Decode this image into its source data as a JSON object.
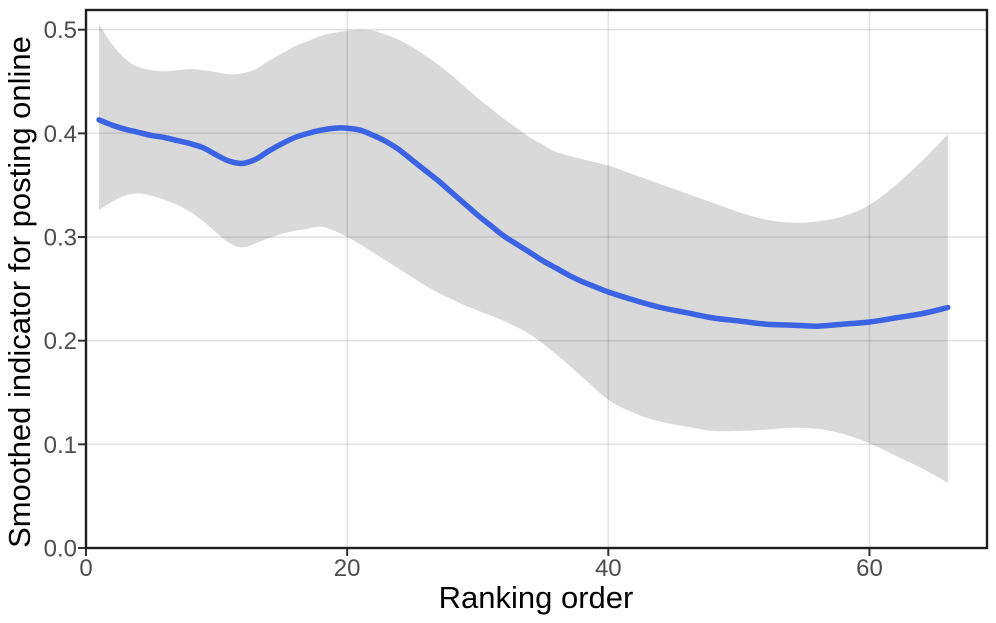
{
  "chart_data": {
    "type": "line",
    "title": "",
    "xlabel": "Ranking order",
    "ylabel": "Smoothed indicator for posting online",
    "legend": "none",
    "grid": "major-only",
    "x_axis": {
      "ticks": [
        0,
        20,
        40,
        60
      ],
      "tick_labels": [
        "0",
        "20",
        "40",
        "60"
      ],
      "range": [
        0,
        69
      ]
    },
    "y_axis": {
      "ticks": [
        0,
        0.1,
        0.2,
        0.3,
        0.4,
        0.5
      ],
      "tick_labels": [
        "0.0",
        "0.1",
        "0.2",
        "0.3",
        "0.4",
        "0.5"
      ],
      "range": [
        0,
        0.519
      ]
    },
    "series": [
      {
        "name": "smoothed-mean",
        "kind": "line",
        "points": [
          [
            1,
            0.413
          ],
          [
            2,
            0.408
          ],
          [
            3,
            0.404
          ],
          [
            4,
            0.401
          ],
          [
            5,
            0.398
          ],
          [
            6,
            0.396
          ],
          [
            7,
            0.393
          ],
          [
            8,
            0.39
          ],
          [
            9,
            0.386
          ],
          [
            10,
            0.379
          ],
          [
            11,
            0.373
          ],
          [
            12,
            0.371
          ],
          [
            13,
            0.375
          ],
          [
            14,
            0.383
          ],
          [
            15,
            0.39
          ],
          [
            16,
            0.396
          ],
          [
            17,
            0.4
          ],
          [
            18,
            0.403
          ],
          [
            19,
            0.405
          ],
          [
            20,
            0.405
          ],
          [
            21,
            0.403
          ],
          [
            22,
            0.398
          ],
          [
            23,
            0.392
          ],
          [
            24,
            0.384
          ],
          [
            25,
            0.374
          ],
          [
            26,
            0.364
          ],
          [
            27,
            0.354
          ],
          [
            28,
            0.343
          ],
          [
            29,
            0.332
          ],
          [
            30,
            0.321
          ],
          [
            31,
            0.311
          ],
          [
            32,
            0.301
          ],
          [
            33,
            0.293
          ],
          [
            34,
            0.285
          ],
          [
            35,
            0.277
          ],
          [
            36,
            0.27
          ],
          [
            37,
            0.263
          ],
          [
            38,
            0.257
          ],
          [
            39,
            0.252
          ],
          [
            40,
            0.247
          ],
          [
            42,
            0.239
          ],
          [
            44,
            0.232
          ],
          [
            46,
            0.227
          ],
          [
            48,
            0.222
          ],
          [
            50,
            0.219
          ],
          [
            52,
            0.216
          ],
          [
            54,
            0.215
          ],
          [
            56,
            0.214
          ],
          [
            58,
            0.216
          ],
          [
            60,
            0.218
          ],
          [
            62,
            0.222
          ],
          [
            64,
            0.226
          ],
          [
            66,
            0.232
          ]
        ]
      },
      {
        "name": "confidence-band",
        "kind": "band",
        "upper": [
          [
            1,
            0.505
          ],
          [
            2,
            0.486
          ],
          [
            3,
            0.472
          ],
          [
            4,
            0.464
          ],
          [
            5,
            0.461
          ],
          [
            6,
            0.46
          ],
          [
            7,
            0.461
          ],
          [
            8,
            0.462
          ],
          [
            9,
            0.461
          ],
          [
            10,
            0.459
          ],
          [
            11,
            0.457
          ],
          [
            12,
            0.458
          ],
          [
            13,
            0.462
          ],
          [
            14,
            0.47
          ],
          [
            15,
            0.477
          ],
          [
            16,
            0.484
          ],
          [
            17,
            0.489
          ],
          [
            18,
            0.494
          ],
          [
            19,
            0.497
          ],
          [
            20,
            0.499
          ],
          [
            21,
            0.5
          ],
          [
            22,
            0.499
          ],
          [
            23,
            0.495
          ],
          [
            24,
            0.49
          ],
          [
            25,
            0.483
          ],
          [
            26,
            0.475
          ],
          [
            27,
            0.466
          ],
          [
            28,
            0.456
          ],
          [
            29,
            0.445
          ],
          [
            30,
            0.434
          ],
          [
            31,
            0.424
          ],
          [
            32,
            0.414
          ],
          [
            33,
            0.405
          ],
          [
            34,
            0.396
          ],
          [
            35,
            0.389
          ],
          [
            36,
            0.382
          ],
          [
            38,
            0.375
          ],
          [
            40,
            0.369
          ],
          [
            42,
            0.36
          ],
          [
            44,
            0.351
          ],
          [
            46,
            0.342
          ],
          [
            48,
            0.333
          ],
          [
            50,
            0.324
          ],
          [
            52,
            0.317
          ],
          [
            54,
            0.314
          ],
          [
            56,
            0.315
          ],
          [
            58,
            0.32
          ],
          [
            60,
            0.331
          ],
          [
            62,
            0.35
          ],
          [
            64,
            0.373
          ],
          [
            66,
            0.399
          ]
        ],
        "lower": [
          [
            1,
            0.326
          ],
          [
            2,
            0.334
          ],
          [
            3,
            0.34
          ],
          [
            4,
            0.342
          ],
          [
            5,
            0.34
          ],
          [
            6,
            0.336
          ],
          [
            7,
            0.331
          ],
          [
            8,
            0.324
          ],
          [
            9,
            0.315
          ],
          [
            10,
            0.304
          ],
          [
            11,
            0.294
          ],
          [
            12,
            0.29
          ],
          [
            13,
            0.294
          ],
          [
            14,
            0.299
          ],
          [
            15,
            0.303
          ],
          [
            16,
            0.306
          ],
          [
            17,
            0.308
          ],
          [
            18,
            0.31
          ],
          [
            19,
            0.306
          ],
          [
            20,
            0.3
          ],
          [
            21,
            0.293
          ],
          [
            22,
            0.285
          ],
          [
            23,
            0.277
          ],
          [
            24,
            0.269
          ],
          [
            25,
            0.261
          ],
          [
            26,
            0.253
          ],
          [
            27,
            0.246
          ],
          [
            28,
            0.24
          ],
          [
            29,
            0.234
          ],
          [
            30,
            0.229
          ],
          [
            32,
            0.219
          ],
          [
            34,
            0.206
          ],
          [
            36,
            0.187
          ],
          [
            38,
            0.165
          ],
          [
            40,
            0.143
          ],
          [
            42,
            0.13
          ],
          [
            44,
            0.122
          ],
          [
            46,
            0.117
          ],
          [
            48,
            0.113
          ],
          [
            50,
            0.113
          ],
          [
            52,
            0.114
          ],
          [
            54,
            0.116
          ],
          [
            56,
            0.115
          ],
          [
            58,
            0.11
          ],
          [
            60,
            0.101
          ],
          [
            62,
            0.089
          ],
          [
            64,
            0.077
          ],
          [
            66,
            0.063
          ]
        ]
      }
    ],
    "colors": {
      "line": "#3B63E4",
      "band": "#D9D9D9",
      "grid": "rgba(0,0,0,0.11)",
      "tick_text": "#4D4D4D",
      "title_text": "#000000",
      "border": "#1F1F1F",
      "tick_mark": "#333333",
      "background": "#FFFFFF"
    }
  }
}
